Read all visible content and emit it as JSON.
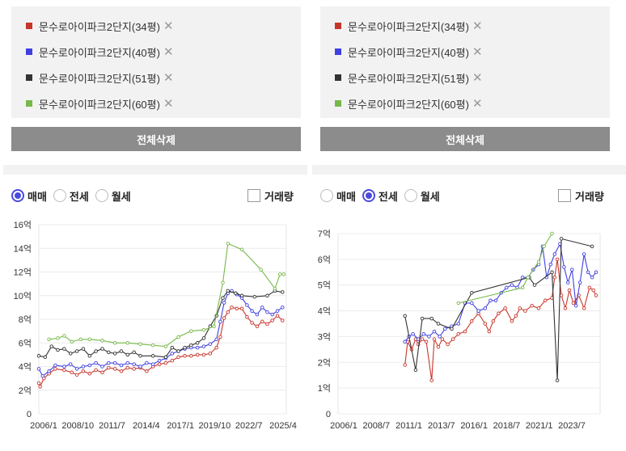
{
  "legend_items": [
    {
      "label": "문수로아이파크2단지(34평)",
      "color": "#c8352b"
    },
    {
      "label": "문수로아이파크2단지(40평)",
      "color": "#4040e0"
    },
    {
      "label": "문수로아이파크2단지(51평)",
      "color": "#333333"
    },
    {
      "label": "문수로아이파크2단지(60평)",
      "color": "#77b84a"
    }
  ],
  "remove_glyph": "✕",
  "clear_all_label": "전체삭제",
  "deal_types": [
    "매매",
    "전세",
    "월세"
  ],
  "volume_label": "거래량",
  "left": {
    "selected_deal": "매매"
  },
  "right": {
    "selected_deal": "전세"
  },
  "chart_data": [
    {
      "type": "line",
      "selected": "매매",
      "x_ticks": [
        "2006/1",
        "2008/10",
        "2011/7",
        "2014/4",
        "2017/1",
        "2019/10",
        "2022/7",
        "2025/4"
      ],
      "y_ticks": [
        "0",
        "2억",
        "4억",
        "6억",
        "8억",
        "10억",
        "12억",
        "14억",
        "16억"
      ],
      "ylim": [
        0,
        16
      ],
      "xlim": [
        2006.0,
        2025.5
      ],
      "grid": true,
      "series": [
        {
          "name": "문수로아이파크2단지(34평)",
          "color": "#c8352b",
          "points": [
            [
              2006.0,
              2.6
            ],
            [
              2006.1,
              2.3
            ],
            [
              2006.4,
              3.0
            ],
            [
              2006.8,
              3.4
            ],
            [
              2007.3,
              3.8
            ],
            [
              2008.0,
              3.7
            ],
            [
              2008.6,
              3.5
            ],
            [
              2009.0,
              3.3
            ],
            [
              2009.5,
              3.6
            ],
            [
              2010.0,
              3.4
            ],
            [
              2010.5,
              3.7
            ],
            [
              2011.0,
              3.5
            ],
            [
              2011.5,
              3.9
            ],
            [
              2012.0,
              3.8
            ],
            [
              2012.5,
              3.6
            ],
            [
              2013.0,
              3.9
            ],
            [
              2013.5,
              3.8
            ],
            [
              2014.0,
              3.9
            ],
            [
              2014.5,
              3.6
            ],
            [
              2015.0,
              4.0
            ],
            [
              2015.5,
              4.2
            ],
            [
              2016.0,
              4.3
            ],
            [
              2016.5,
              4.5
            ],
            [
              2017.0,
              4.8
            ],
            [
              2017.5,
              4.9
            ],
            [
              2018.0,
              4.9
            ],
            [
              2018.5,
              5.0
            ],
            [
              2019.0,
              5.0
            ],
            [
              2019.5,
              5.1
            ],
            [
              2020.0,
              5.6
            ],
            [
              2020.3,
              6.5
            ],
            [
              2020.6,
              8.1
            ],
            [
              2020.9,
              8.6
            ],
            [
              2021.2,
              9.0
            ],
            [
              2021.6,
              8.9
            ],
            [
              2022.0,
              8.9
            ],
            [
              2022.4,
              8.2
            ],
            [
              2022.8,
              7.7
            ],
            [
              2023.2,
              7.4
            ],
            [
              2023.6,
              7.8
            ],
            [
              2024.0,
              7.6
            ],
            [
              2024.4,
              7.9
            ],
            [
              2024.8,
              8.3
            ],
            [
              2025.2,
              7.9
            ]
          ]
        },
        {
          "name": "문수로아이파크2단지(40평)",
          "color": "#4040e0",
          "points": [
            [
              2006.0,
              3.8
            ],
            [
              2006.3,
              3.2
            ],
            [
              2006.8,
              3.6
            ],
            [
              2007.3,
              4.1
            ],
            [
              2008.0,
              4.0
            ],
            [
              2008.5,
              4.2
            ],
            [
              2009.0,
              3.8
            ],
            [
              2009.5,
              4.0
            ],
            [
              2010.0,
              4.1
            ],
            [
              2010.5,
              4.3
            ],
            [
              2011.0,
              4.0
            ],
            [
              2011.5,
              4.3
            ],
            [
              2012.0,
              4.3
            ],
            [
              2012.5,
              4.1
            ],
            [
              2013.0,
              4.3
            ],
            [
              2013.5,
              4.2
            ],
            [
              2014.0,
              4.0
            ],
            [
              2014.5,
              4.3
            ],
            [
              2015.0,
              4.2
            ],
            [
              2015.5,
              4.5
            ],
            [
              2016.0,
              4.7
            ],
            [
              2016.5,
              5.1
            ],
            [
              2017.0,
              5.3
            ],
            [
              2017.5,
              5.5
            ],
            [
              2018.0,
              5.6
            ],
            [
              2018.5,
              5.6
            ],
            [
              2019.0,
              5.7
            ],
            [
              2019.5,
              5.9
            ],
            [
              2020.0,
              6.3
            ],
            [
              2020.3,
              7.8
            ],
            [
              2020.6,
              9.4
            ],
            [
              2020.9,
              10.2
            ],
            [
              2021.2,
              10.4
            ],
            [
              2021.6,
              10.1
            ],
            [
              2022.0,
              9.8
            ],
            [
              2022.4,
              9.2
            ],
            [
              2022.8,
              8.7
            ],
            [
              2023.2,
              8.4
            ],
            [
              2023.6,
              9.0
            ],
            [
              2024.0,
              8.6
            ],
            [
              2024.4,
              8.4
            ],
            [
              2024.8,
              8.7
            ],
            [
              2025.2,
              9.0
            ]
          ]
        },
        {
          "name": "문수로아이파크2단지(51평)",
          "color": "#333333",
          "points": [
            [
              2006.0,
              4.9
            ],
            [
              2006.5,
              4.8
            ],
            [
              2007.0,
              5.7
            ],
            [
              2007.5,
              5.4
            ],
            [
              2008.0,
              5.5
            ],
            [
              2008.5,
              5.1
            ],
            [
              2009.0,
              5.3
            ],
            [
              2009.5,
              5.5
            ],
            [
              2010.0,
              4.9
            ],
            [
              2010.5,
              5.3
            ],
            [
              2011.0,
              5.5
            ],
            [
              2011.5,
              5.2
            ],
            [
              2012.0,
              5.1
            ],
            [
              2012.5,
              5.3
            ],
            [
              2013.0,
              5.0
            ],
            [
              2013.5,
              5.2
            ],
            [
              2014.0,
              4.9
            ],
            [
              2015.0,
              4.9
            ],
            [
              2016.0,
              4.8
            ],
            [
              2016.5,
              5.6
            ],
            [
              2017.0,
              5.3
            ],
            [
              2017.5,
              5.6
            ],
            [
              2018.0,
              5.8
            ],
            [
              2018.5,
              6.0
            ],
            [
              2019.0,
              6.4
            ],
            [
              2019.5,
              7.4
            ],
            [
              2020.0,
              8.3
            ],
            [
              2020.5,
              9.8
            ],
            [
              2020.9,
              10.4
            ],
            [
              2021.5,
              10.2
            ],
            [
              2022.0,
              10.0
            ],
            [
              2023.0,
              9.9
            ],
            [
              2024.0,
              10.0
            ],
            [
              2024.6,
              10.4
            ],
            [
              2025.2,
              10.3
            ]
          ]
        },
        {
          "name": "문수로아이파크2단지(60평)",
          "color": "#77b84a",
          "points": [
            [
              2006.8,
              6.3
            ],
            [
              2007.5,
              6.4
            ],
            [
              2008.0,
              6.6
            ],
            [
              2008.6,
              6.1
            ],
            [
              2009.3,
              6.3
            ],
            [
              2010.0,
              6.3
            ],
            [
              2011.0,
              6.2
            ],
            [
              2012.0,
              6.0
            ],
            [
              2013.0,
              6.0
            ],
            [
              2014.0,
              5.9
            ],
            [
              2015.0,
              5.8
            ],
            [
              2016.0,
              5.7
            ],
            [
              2017.0,
              6.5
            ],
            [
              2018.0,
              7.0
            ],
            [
              2019.0,
              7.1
            ],
            [
              2019.8,
              7.4
            ],
            [
              2020.5,
              11.1
            ],
            [
              2020.9,
              14.4
            ],
            [
              2022.0,
              13.9
            ],
            [
              2023.5,
              12.2
            ],
            [
              2024.6,
              10.6
            ],
            [
              2025.0,
              11.8
            ],
            [
              2025.3,
              11.8
            ]
          ]
        }
      ]
    },
    {
      "type": "line",
      "selected": "전세",
      "x_ticks": [
        "2006/1",
        "2008/7",
        "2011/1",
        "2013/7",
        "2016/1",
        "2018/7",
        "2021/1",
        "2023/7"
      ],
      "y_ticks": [
        "0",
        "1억",
        "2억",
        "3억",
        "4억",
        "5억",
        "6억",
        "7억"
      ],
      "ylim": [
        0,
        7
      ],
      "xlim": [
        2006.0,
        2025.6
      ],
      "grid": true,
      "series": [
        {
          "name": "문수로아이파크2단지(34평)",
          "color": "#c8352b",
          "points": [
            [
              2011.0,
              1.9
            ],
            [
              2011.2,
              2.8
            ],
            [
              2011.5,
              2.5
            ],
            [
              2011.8,
              2.9
            ],
            [
              2012.0,
              2.7
            ],
            [
              2012.3,
              2.9
            ],
            [
              2012.6,
              2.8
            ],
            [
              2013.0,
              1.3
            ],
            [
              2013.2,
              2.9
            ],
            [
              2013.5,
              2.6
            ],
            [
              2013.8,
              2.9
            ],
            [
              2014.2,
              2.7
            ],
            [
              2014.6,
              2.9
            ],
            [
              2015.0,
              3.1
            ],
            [
              2015.5,
              3.2
            ],
            [
              2016.0,
              3.6
            ],
            [
              2016.5,
              3.9
            ],
            [
              2017.0,
              3.5
            ],
            [
              2017.3,
              3.2
            ],
            [
              2017.6,
              3.6
            ],
            [
              2018.0,
              3.9
            ],
            [
              2018.5,
              4.1
            ],
            [
              2019.0,
              3.6
            ],
            [
              2019.3,
              3.8
            ],
            [
              2019.6,
              4.1
            ],
            [
              2020.0,
              4.0
            ],
            [
              2020.5,
              4.2
            ],
            [
              2021.0,
              4.1
            ],
            [
              2021.5,
              4.4
            ],
            [
              2022.0,
              4.5
            ],
            [
              2022.2,
              5.3
            ],
            [
              2022.4,
              6.0
            ],
            [
              2022.7,
              4.6
            ],
            [
              2023.0,
              4.1
            ],
            [
              2023.3,
              4.8
            ],
            [
              2023.6,
              4.3
            ],
            [
              2024.0,
              4.6
            ],
            [
              2024.4,
              4.1
            ],
            [
              2024.8,
              4.9
            ],
            [
              2025.1,
              4.8
            ],
            [
              2025.3,
              4.6
            ]
          ]
        },
        {
          "name": "문수로아이파크2단지(40평)",
          "color": "#4040e0",
          "points": [
            [
              2011.0,
              2.8
            ],
            [
              2011.3,
              3.0
            ],
            [
              2011.6,
              3.1
            ],
            [
              2012.0,
              2.9
            ],
            [
              2012.4,
              3.1
            ],
            [
              2012.8,
              3.0
            ],
            [
              2013.2,
              3.2
            ],
            [
              2013.6,
              3.0
            ],
            [
              2014.0,
              3.3
            ],
            [
              2014.5,
              3.4
            ],
            [
              2015.0,
              3.5
            ],
            [
              2015.5,
              4.3
            ],
            [
              2016.0,
              4.3
            ],
            [
              2016.5,
              4.0
            ],
            [
              2017.0,
              4.1
            ],
            [
              2017.4,
              4.4
            ],
            [
              2017.8,
              4.4
            ],
            [
              2018.2,
              4.7
            ],
            [
              2018.6,
              4.9
            ],
            [
              2019.0,
              5.0
            ],
            [
              2019.4,
              4.9
            ],
            [
              2019.8,
              5.3
            ],
            [
              2020.2,
              5.3
            ],
            [
              2020.6,
              5.6
            ],
            [
              2021.0,
              5.8
            ],
            [
              2021.3,
              6.5
            ],
            [
              2021.6,
              5.3
            ],
            [
              2021.9,
              5.8
            ],
            [
              2022.2,
              6.2
            ],
            [
              2022.6,
              6.6
            ],
            [
              2022.9,
              5.7
            ],
            [
              2023.2,
              5.1
            ],
            [
              2023.5,
              5.6
            ],
            [
              2023.8,
              4.2
            ],
            [
              2024.1,
              5.1
            ],
            [
              2024.4,
              6.2
            ],
            [
              2024.7,
              5.5
            ],
            [
              2025.0,
              5.3
            ],
            [
              2025.3,
              5.5
            ]
          ]
        },
        {
          "name": "문수로아이파크2단지(51평)",
          "color": "#333333",
          "points": [
            [
              2011.0,
              3.8
            ],
            [
              2011.8,
              1.7
            ],
            [
              2012.3,
              3.7
            ],
            [
              2013.0,
              3.7
            ],
            [
              2013.5,
              3.5
            ],
            [
              2014.5,
              3.3
            ],
            [
              2016.0,
              4.7
            ],
            [
              2020.3,
              5.3
            ],
            [
              2020.7,
              5.0
            ],
            [
              2022.0,
              5.5
            ],
            [
              2022.4,
              1.3
            ],
            [
              2022.7,
              6.8
            ],
            [
              2025.0,
              6.5
            ]
          ]
        },
        {
          "name": "문수로아이파크2단지(60평)",
          "color": "#77b84a",
          "points": [
            [
              2015.0,
              4.3
            ],
            [
              2019.8,
              4.9
            ],
            [
              2020.2,
              5.3
            ],
            [
              2021.0,
              5.9
            ],
            [
              2021.4,
              6.5
            ],
            [
              2022.0,
              7.0
            ]
          ]
        }
      ]
    }
  ]
}
